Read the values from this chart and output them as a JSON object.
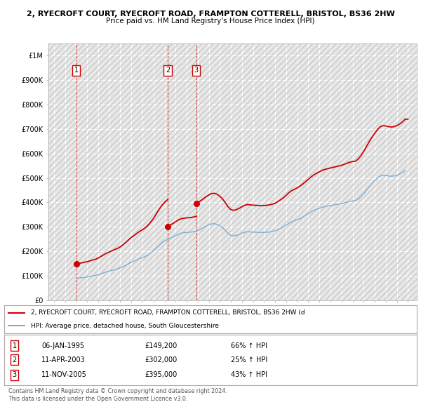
{
  "title1": "2, RYECROFT COURT, RYECROFT ROAD, FRAMPTON COTTERELL, BRISTOL, BS36 2HW",
  "title2": "Price paid vs. HM Land Registry's House Price Index (HPI)",
  "background_color": "#ffffff",
  "plot_bg_color": "#e8e8e8",
  "grid_color": "#ffffff",
  "hpi_line_color": "#7bafd4",
  "price_line_color": "#cc0000",
  "transactions": [
    {
      "num": 1,
      "date_str": "06-JAN-1995",
      "year": 1995.03,
      "price": 149200,
      "hpi_pct": "66% ↑ HPI"
    },
    {
      "num": 2,
      "date_str": "11-APR-2003",
      "year": 2003.28,
      "price": 302000,
      "hpi_pct": "25% ↑ HPI"
    },
    {
      "num": 3,
      "date_str": "11-NOV-2005",
      "year": 2005.86,
      "price": 395000,
      "hpi_pct": "43% ↑ HPI"
    }
  ],
  "legend_label_price": "2, RYECROFT COURT, RYECROFT ROAD, FRAMPTON COTTERELL, BRISTOL, BS36 2HW (d",
  "legend_label_hpi": "HPI: Average price, detached house, South Gloucestershire",
  "copyright_text": "Contains HM Land Registry data © Crown copyright and database right 2024.\nThis data is licensed under the Open Government Licence v3.0.",
  "ylim": [
    0,
    1050000
  ],
  "yticks": [
    0,
    100000,
    200000,
    300000,
    400000,
    500000,
    600000,
    700000,
    800000,
    900000,
    1000000
  ],
  "ytick_labels": [
    "£0",
    "£100K",
    "£200K",
    "£300K",
    "£400K",
    "£500K",
    "£600K",
    "£700K",
    "£800K",
    "£900K",
    "£1M"
  ],
  "xlim_start": 1992.5,
  "xlim_end": 2025.8,
  "xticks": [
    1993,
    1994,
    1995,
    1996,
    1997,
    1998,
    1999,
    2000,
    2001,
    2002,
    2003,
    2004,
    2005,
    2006,
    2007,
    2008,
    2009,
    2010,
    2011,
    2012,
    2013,
    2014,
    2015,
    2016,
    2017,
    2018,
    2019,
    2020,
    2021,
    2022,
    2023,
    2024,
    2025
  ]
}
